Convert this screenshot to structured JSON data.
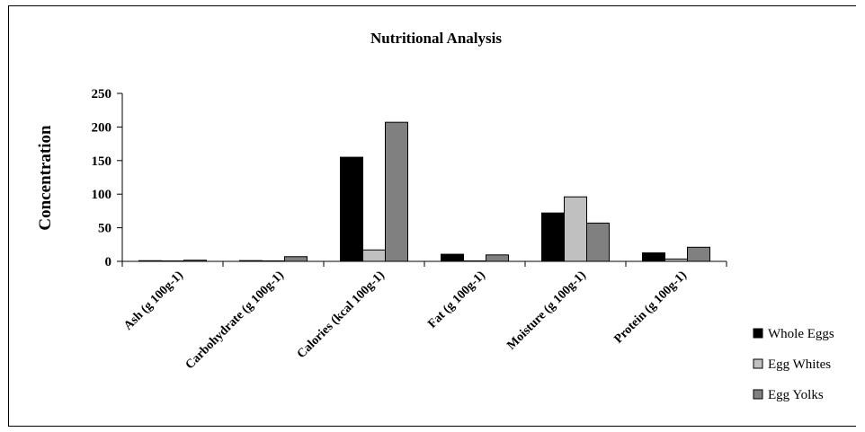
{
  "chart_data": {
    "type": "bar",
    "title": "Nutritional Analysis",
    "xlabel": "",
    "ylabel": "Concentration",
    "ylim": [
      0,
      250
    ],
    "yticks": [
      0,
      50,
      100,
      150,
      200,
      250
    ],
    "grid": false,
    "legend_position": "bottom-right",
    "categories": [
      "Ash (g 100g-1)",
      "Carbohydrate (g 100g-1)",
      "Calories (kcal 100g-1)",
      "Fat (g 100g-1)",
      "Moisture (g 100g-1)",
      "Protein (g 100g-1)"
    ],
    "series": [
      {
        "name": "Whole Eggs",
        "color": "#000000",
        "values": [
          1,
          1.1,
          155,
          10.6,
          72,
          12.6
        ]
      },
      {
        "name": "Egg Whites",
        "color": "#c0c0c0",
        "values": [
          0.6,
          0.7,
          17,
          0.1,
          96,
          3.5
        ]
      },
      {
        "name": "Egg Yolks",
        "color": "#808080",
        "values": [
          1.7,
          7,
          207,
          9.6,
          57,
          21
        ]
      }
    ]
  }
}
